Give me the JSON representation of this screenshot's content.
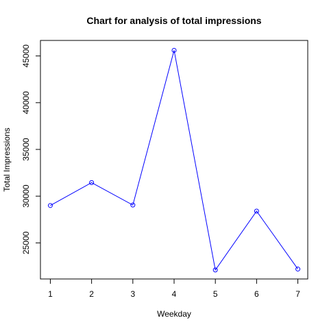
{
  "chart_data": {
    "type": "line",
    "title": "Chart for analysis of total impressions",
    "xlabel": "Weekday",
    "ylabel": "Total Impressions",
    "x": [
      1,
      2,
      3,
      4,
      5,
      6,
      7
    ],
    "xticks": [
      "1",
      "2",
      "3",
      "4",
      "5",
      "6",
      "7"
    ],
    "xlim": [
      0.76,
      7.24
    ],
    "yticks": [
      "25000",
      "30000",
      "35000",
      "40000",
      "45000"
    ],
    "ylim": [
      21140,
      46660
    ],
    "grid": false,
    "legend": "none",
    "line_color": "#0000ff",
    "marker": "open-circle",
    "series": [
      {
        "values": [
          29000,
          31450,
          29050,
          45600,
          22100,
          28400,
          22200
        ]
      }
    ]
  }
}
